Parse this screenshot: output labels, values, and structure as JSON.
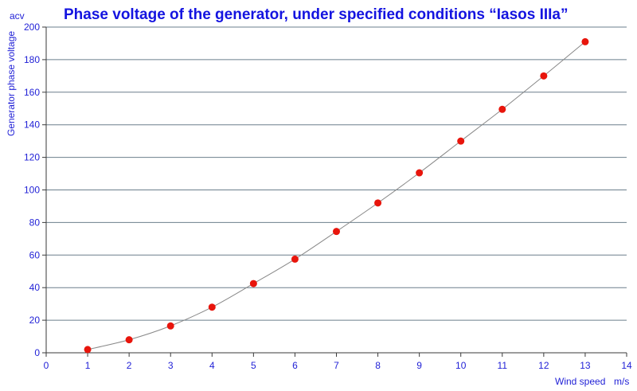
{
  "colors": {
    "text": "#1f1fd6",
    "title": "#1414e0",
    "grid": "#6b7f8c",
    "axis": "#3a3a3a",
    "curve": "#888888",
    "point": "#e8150c"
  },
  "chart_data": {
    "type": "scatter",
    "title": "Phase voltage of the generator, under specified conditions “Iasos IIIa”",
    "xlabel": "Wind speed",
    "xunit": "m/s",
    "ylabel": "Generator phase voltage",
    "yunit": "acv",
    "xlim": [
      0,
      14
    ],
    "ylim": [
      0,
      200
    ],
    "x_ticks": [
      0,
      1,
      2,
      3,
      4,
      5,
      6,
      7,
      8,
      9,
      10,
      11,
      12,
      13,
      14
    ],
    "y_ticks": [
      0,
      20,
      40,
      60,
      80,
      100,
      120,
      140,
      160,
      180,
      200
    ],
    "grid": true,
    "series": [
      {
        "x": [
          1,
          2,
          3,
          4,
          5,
          6,
          7,
          8,
          9,
          10,
          11,
          12,
          13
        ],
        "y": [
          2,
          8,
          16.5,
          28,
          42.5,
          57.5,
          74.5,
          92,
          110.5,
          130,
          149.5,
          170,
          191
        ]
      }
    ]
  }
}
